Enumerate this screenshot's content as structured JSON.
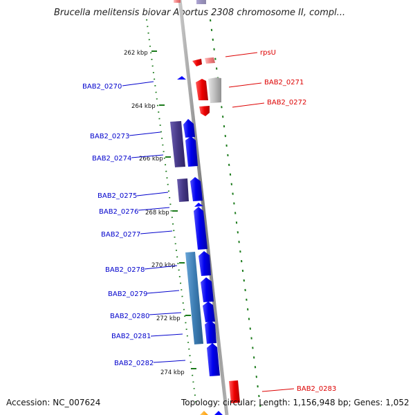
{
  "title": "Brucella melitensis biovar Abortus 2308 chromosome II, compl...",
  "footer": {
    "accession": "Accession: NC_007624",
    "summary": "Topology: circular; Length: 1,156,948 bp; Genes: 1,052"
  },
  "ticks": [
    "262 kbp",
    "264 kbp",
    "266 kbp",
    "268 kbp",
    "270 kbp",
    "272 kbp",
    "274 kbp"
  ],
  "left_labels": [
    "BAB2_0270",
    "BAB2_0273",
    "BAB2_0274",
    "BAB2_0275",
    "BAB2_0276",
    "BAB2_0277",
    "BAB2_0278",
    "BAB2_0279",
    "BAB2_0280",
    "BAB2_0281",
    "BAB2_0282"
  ],
  "right_labels": [
    "rpsU",
    "BAB2_0271",
    "BAB2_0272",
    "BAB2_0283"
  ],
  "colors": {
    "forward_gene": "#0a0aff",
    "reverse_gene": "#ff0000",
    "label_forward": "#0000cc",
    "label_reverse": "#dd0000",
    "backbone": "#8a8a8a",
    "tick_green": "#1a7a1a",
    "cds_purple": "#4a3c8c",
    "cds_steel": "#3d7db3",
    "cds_grey": "#b8b8b8"
  }
}
